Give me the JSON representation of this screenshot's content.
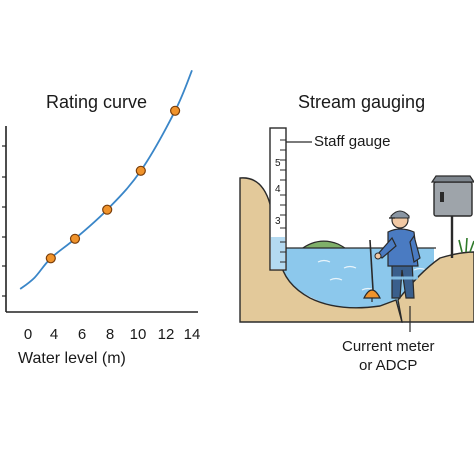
{
  "rating_curve": {
    "title": "Rating curve",
    "xlabel": "Water level (m)"
  },
  "stream_gauging": {
    "title": "Stream gauging",
    "staff_label": "Staff gauge",
    "meter_label_line1": "Current meter",
    "meter_label_line2": "or ADCP",
    "staff_marks": [
      "5",
      "4",
      "3"
    ]
  },
  "chart_data": {
    "type": "scatter",
    "title": "Rating curve",
    "xlabel": "Water level (m)",
    "ylabel": "",
    "xticks": [
      0,
      4,
      6,
      8,
      10,
      12,
      14
    ],
    "points": [
      {
        "x": 3.5,
        "y": 0.27
      },
      {
        "x": 5.5,
        "y": 0.39
      },
      {
        "x": 7.8,
        "y": 0.57
      },
      {
        "x": 10.2,
        "y": 0.81
      },
      {
        "x": 12.7,
        "y": 1.18
      }
    ],
    "curve": [
      {
        "x": -1.2,
        "y": 0.08
      },
      {
        "x": 1.0,
        "y": 0.15
      },
      {
        "x": 3.5,
        "y": 0.27
      },
      {
        "x": 5.5,
        "y": 0.39
      },
      {
        "x": 7.8,
        "y": 0.57
      },
      {
        "x": 10.2,
        "y": 0.81
      },
      {
        "x": 12.7,
        "y": 1.18
      },
      {
        "x": 14.0,
        "y": 1.43
      }
    ],
    "colors": {
      "curve": "#3a86c8",
      "points": "#f0932b",
      "point_edge": "#7a3e0a"
    }
  }
}
